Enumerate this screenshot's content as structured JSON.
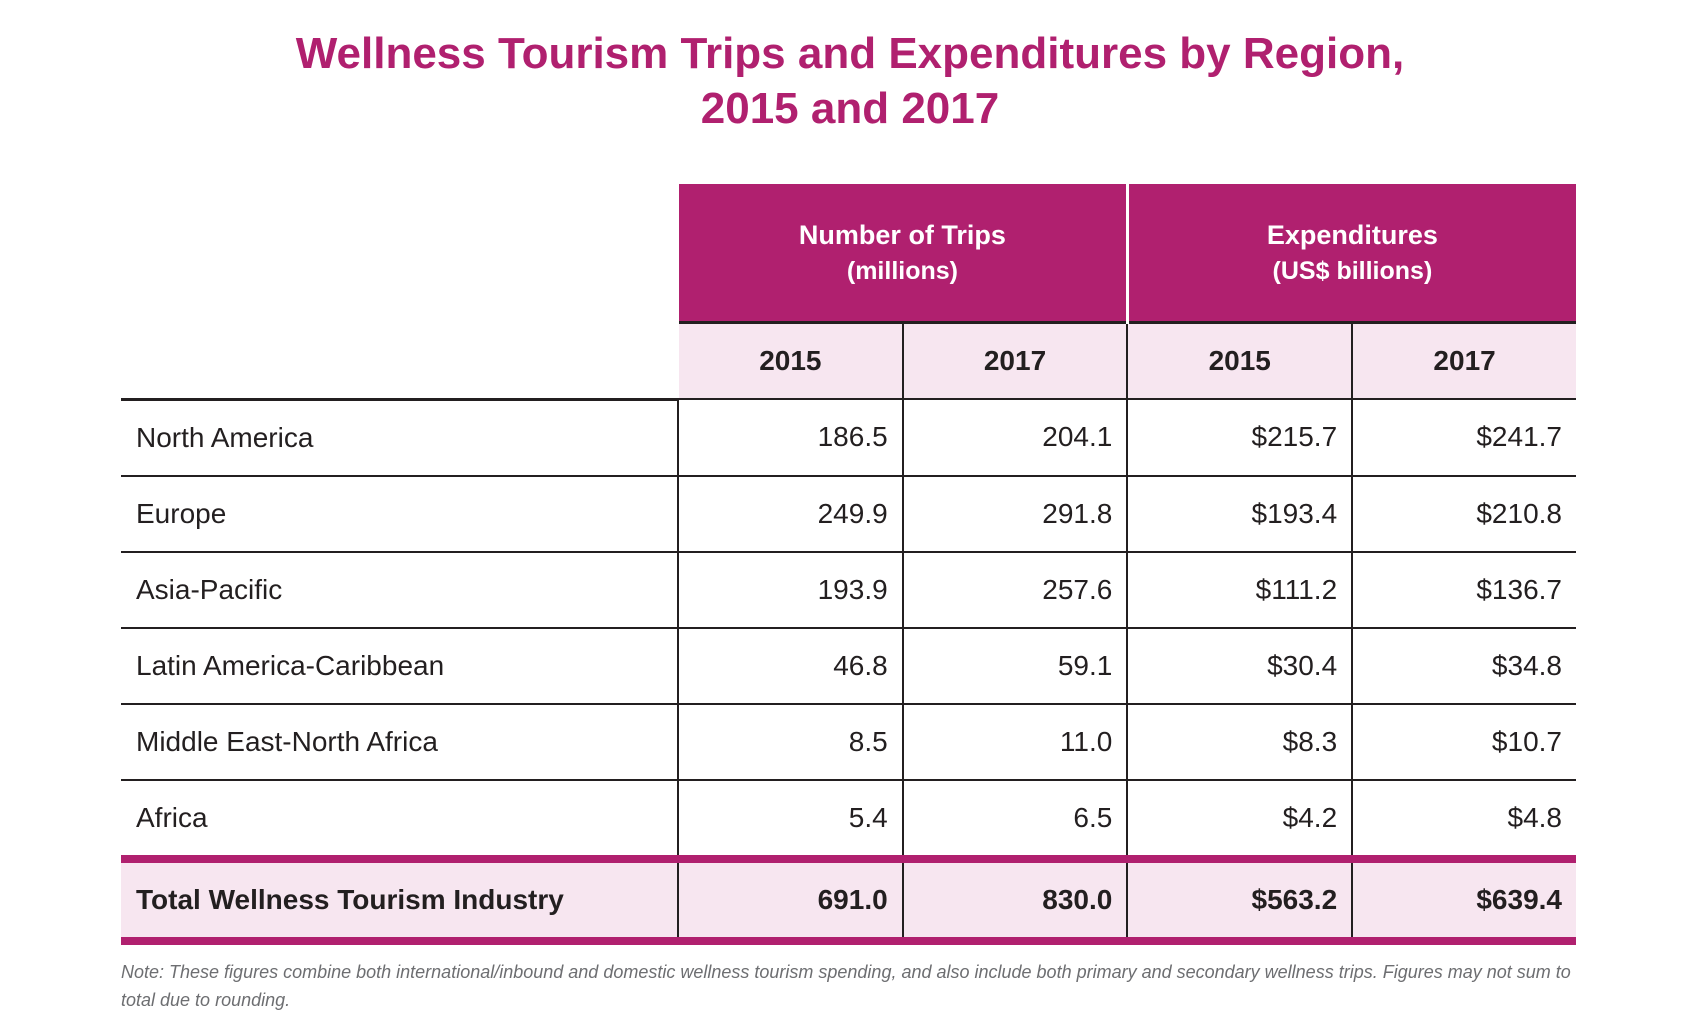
{
  "title": {
    "line1": "Wellness Tourism Trips and Expenditures by Region,",
    "line2": "2015 and 2017"
  },
  "colors": {
    "accent": "#b0206f",
    "header_tint": "#f7e6f0",
    "text": "#231f20"
  },
  "table": {
    "groups": [
      {
        "label": "Number of Trips",
        "unit": "(millions)"
      },
      {
        "label": "Expenditures",
        "unit": "(US$ billions)"
      }
    ],
    "years": [
      "2015",
      "2017",
      "2015",
      "2017"
    ],
    "rows": [
      {
        "region": "North America",
        "values": [
          "186.5",
          "204.1",
          "$215.7",
          "$241.7"
        ]
      },
      {
        "region": "Europe",
        "values": [
          "249.9",
          "291.8",
          "$193.4",
          "$210.8"
        ]
      },
      {
        "region": "Asia-Pacific",
        "values": [
          "193.9",
          "257.6",
          "$111.2",
          "$136.7"
        ]
      },
      {
        "region": "Latin America-Caribbean",
        "values": [
          "46.8",
          "59.1",
          "$30.4",
          "$34.8"
        ]
      },
      {
        "region": "Middle East-North Africa",
        "values": [
          "8.5",
          "11.0",
          "$8.3",
          "$10.7"
        ]
      },
      {
        "region": "Africa",
        "values": [
          "5.4",
          "6.5",
          "$4.2",
          "$4.8"
        ]
      }
    ],
    "total": {
      "region": "Total Wellness Tourism Industry",
      "values": [
        "691.0",
        "830.0",
        "$563.2",
        "$639.4"
      ]
    }
  },
  "note": "Note: These figures combine both international/inbound and domestic wellness tourism spending, and also include both primary and secondary wellness trips. Figures may not sum to total due to rounding."
}
